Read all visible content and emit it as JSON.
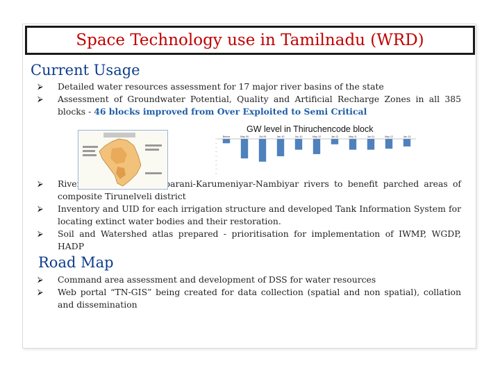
{
  "slide": {
    "title": "Space Technology use in Tamilnadu (WRD)",
    "current_usage": {
      "heading": "Current Usage",
      "bullet1": "Detailed water resources assessment for 17 major river basins of the state",
      "bullet2_main": "Assessment of Groundwater Potential, Quality and Artificial Recharge Zones in all 385 blocks - ",
      "bullet2_highlight": "46 blocks improved from Over Exploited to Semi Critical",
      "bullet3": "River linking of Tamiraparani-Karumeniyar-Nambiyar rivers to benefit parched areas of composite Tirunelveli district",
      "bullet4": "Inventory and UID for each irrigation structure and developed Tank Information System for locating extinct water bodies and their restoration.",
      "bullet5": "Soil and Watershed atlas prepared - prioritisation for implementation of IWMP, WGDP, HADP"
    },
    "figure_caption": "GW level in Thiruchencode block",
    "road_map": {
      "heading": "Road Map",
      "bullet1": "Command area assessment and development of DSS for water resources",
      "bullet2": "Web portal “TN-GIS” being created for data collection (spatial and non spatial), collation and dissemination"
    }
  },
  "colors": {
    "title": "#c00000",
    "heading": "#0d3c8c",
    "highlight": "#1f5fa8",
    "bar": "#4f81bd"
  },
  "icons": {
    "bullet": "arrow-bullet-icon"
  },
  "chart_data": {
    "type": "bar",
    "categories": [
      "Before",
      "May 09",
      "Oct 09",
      "Jan 10",
      "Jun 10",
      "May 10",
      "Jan 11",
      "May 11",
      "Jun 11",
      "May 12",
      "Jan 13"
    ],
    "values": [
      -2,
      -9,
      -10.5,
      -8,
      -5,
      -7,
      -2.5,
      -5,
      -5,
      -4.5,
      -3.5
    ],
    "ylim": [
      -16,
      0
    ]
  }
}
